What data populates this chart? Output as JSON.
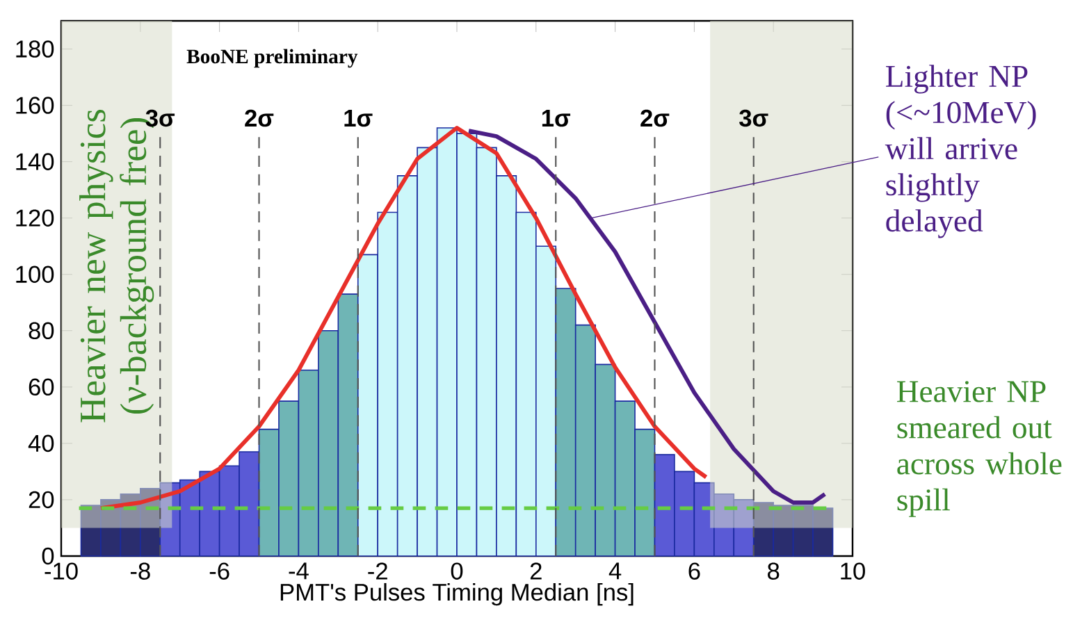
{
  "chart_data": {
    "type": "histogram",
    "xlabel": "PMT's Pulses Timing Median [ns]",
    "bins": [
      -9.5,
      -9,
      -8.5,
      -8,
      -7.5,
      -7,
      -6.5,
      -6,
      -5.5,
      -5,
      -4.5,
      -4,
      -3.5,
      -3,
      -2.5,
      -2,
      -1.5,
      -1,
      -0.5,
      0,
      0.5,
      1,
      1.5,
      2,
      2.5,
      3,
      3.5,
      4,
      4.5,
      5,
      5.5,
      6,
      6.5,
      7,
      7.5,
      8,
      8.5,
      9,
      9.5
    ],
    "values": [
      18,
      20,
      22,
      24,
      26,
      27,
      30,
      32,
      37,
      45,
      55,
      66,
      80,
      93,
      107,
      122,
      135,
      145,
      152,
      150,
      145,
      135,
      122,
      110,
      95,
      82,
      68,
      55,
      45,
      36,
      30,
      26,
      22,
      20,
      19,
      18,
      18,
      17
    ],
    "colors": [
      "#2a2d6e",
      "#2a2d6e",
      "#2a2d6e",
      "#2a2d6e",
      "#5a5ad6",
      "#5a5ad6",
      "#5a5ad6",
      "#5a5ad6",
      "#5a5ad6",
      "#6fb5b5",
      "#6fb5b5",
      "#6fb5b5",
      "#6fb5b5",
      "#6fb5b5",
      "#ccf7fa",
      "#ccf7fa",
      "#ccf7fa",
      "#ccf7fa",
      "#ccf7fa",
      "#ccf7fa",
      "#ccf7fa",
      "#ccf7fa",
      "#ccf7fa",
      "#ccf7fa",
      "#6fb5b5",
      "#6fb5b5",
      "#6fb5b5",
      "#6fb5b5",
      "#6fb5b5",
      "#5a5ad6",
      "#5a5ad6",
      "#5a5ad6",
      "#5a5ad6",
      "#5a5ad6",
      "#2a2d6e",
      "#2a2d6e",
      "#2a2d6e",
      "#2a2d6e"
    ],
    "series": [
      {
        "type": "line",
        "color": "#e8302a",
        "x": [
          -9,
          -8,
          -7,
          -6,
          -5,
          -4,
          -3,
          -2,
          -1,
          0,
          1,
          2,
          3,
          4,
          5,
          6,
          6.3
        ],
        "values": [
          17,
          19,
          23,
          31,
          46,
          66,
          92,
          118,
          141,
          152,
          143,
          120,
          93,
          67,
          46,
          31,
          28
        ]
      },
      {
        "type": "line",
        "color": "#4b1f86",
        "x": [
          0.3,
          1,
          2,
          3,
          4,
          5,
          6,
          7,
          8,
          8.5,
          9,
          9.3
        ],
        "values": [
          151,
          149,
          141,
          127,
          108,
          83,
          58,
          38,
          23,
          19,
          19,
          22
        ]
      }
    ],
    "xlim": [
      -10,
      10
    ],
    "ylim": [
      0,
      190
    ],
    "xticks": [
      -10,
      -8,
      -6,
      -4,
      -2,
      0,
      2,
      4,
      6,
      8,
      10
    ],
    "yticks": [
      0,
      20,
      40,
      60,
      80,
      100,
      120,
      140,
      160,
      180
    ],
    "ref_lines": [
      {
        "axis": "y",
        "value": 17,
        "color": "#66cc44",
        "line_style": "dashed"
      },
      {
        "axis": "x",
        "value": -7.5,
        "label": "3σ",
        "color": "#555555",
        "line_style": "dashed"
      },
      {
        "axis": "x",
        "value": -5,
        "label": "2σ",
        "color": "#555555",
        "line_style": "dashed"
      },
      {
        "axis": "x",
        "value": -2.5,
        "label": "1σ",
        "color": "#555555",
        "line_style": "dashed"
      },
      {
        "axis": "x",
        "value": 2.5,
        "label": "1σ",
        "color": "#555555",
        "line_style": "dashed"
      },
      {
        "axis": "x",
        "value": 5,
        "label": "2σ",
        "color": "#555555",
        "line_style": "dashed"
      },
      {
        "axis": "x",
        "value": 7.5,
        "label": "3σ",
        "color": "#555555",
        "line_style": "dashed"
      }
    ],
    "bands": [
      {
        "axis": "x",
        "from": -10,
        "to": -7.2,
        "label": "Heavier new physics (ν-background free)",
        "color": "#d9dccb"
      },
      {
        "axis": "x",
        "from": 6.4,
        "to": 10,
        "color": "#d9dccb"
      }
    ],
    "annotations": [
      "BooNE preliminary",
      {
        "text": "Lighter NP (<~10MeV) will arrive slightly delayed",
        "x": 3.4,
        "y": 120
      },
      "Heavier NP smeared out across whole spill"
    ]
  }
}
